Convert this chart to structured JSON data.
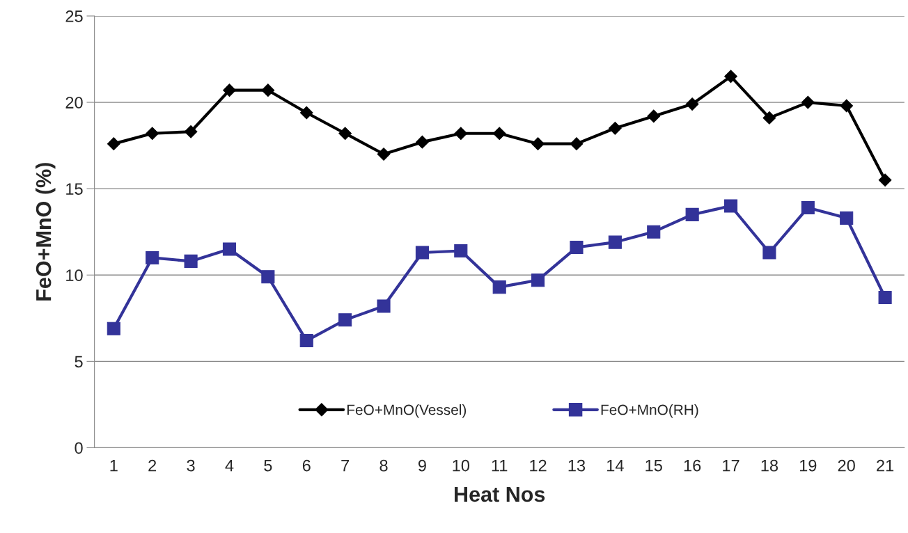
{
  "chart_data": {
    "type": "line",
    "xlabel": "Heat Nos",
    "ylabel": "FeO+MnO (%)",
    "categories": [
      "1",
      "2",
      "3",
      "4",
      "5",
      "6",
      "7",
      "8",
      "9",
      "10",
      "11",
      "12",
      "13",
      "14",
      "15",
      "16",
      "17",
      "18",
      "19",
      "20",
      "21"
    ],
    "series": [
      {
        "name": "FeO+MnO(Vessel)",
        "color": "#000000",
        "marker": "diamond",
        "values": [
          17.6,
          18.2,
          18.3,
          20.7,
          20.7,
          19.4,
          18.2,
          17.0,
          17.7,
          18.2,
          18.2,
          17.6,
          17.6,
          18.5,
          19.2,
          19.9,
          21.5,
          19.1,
          20.0,
          19.8,
          15.5
        ]
      },
      {
        "name": "FeO+MnO(RH)",
        "color": "#333399",
        "marker": "square",
        "values": [
          6.9,
          11.0,
          10.8,
          11.5,
          9.9,
          6.2,
          7.4,
          8.2,
          11.3,
          11.4,
          9.3,
          9.7,
          11.6,
          11.9,
          12.5,
          13.5,
          14.0,
          11.3,
          13.9,
          13.3,
          8.7
        ]
      }
    ],
    "ylim": [
      0,
      25
    ],
    "yticks": [
      0,
      5,
      10,
      15,
      20,
      25
    ],
    "grid": "y",
    "legend": "bottom",
    "line_style": "solid"
  }
}
